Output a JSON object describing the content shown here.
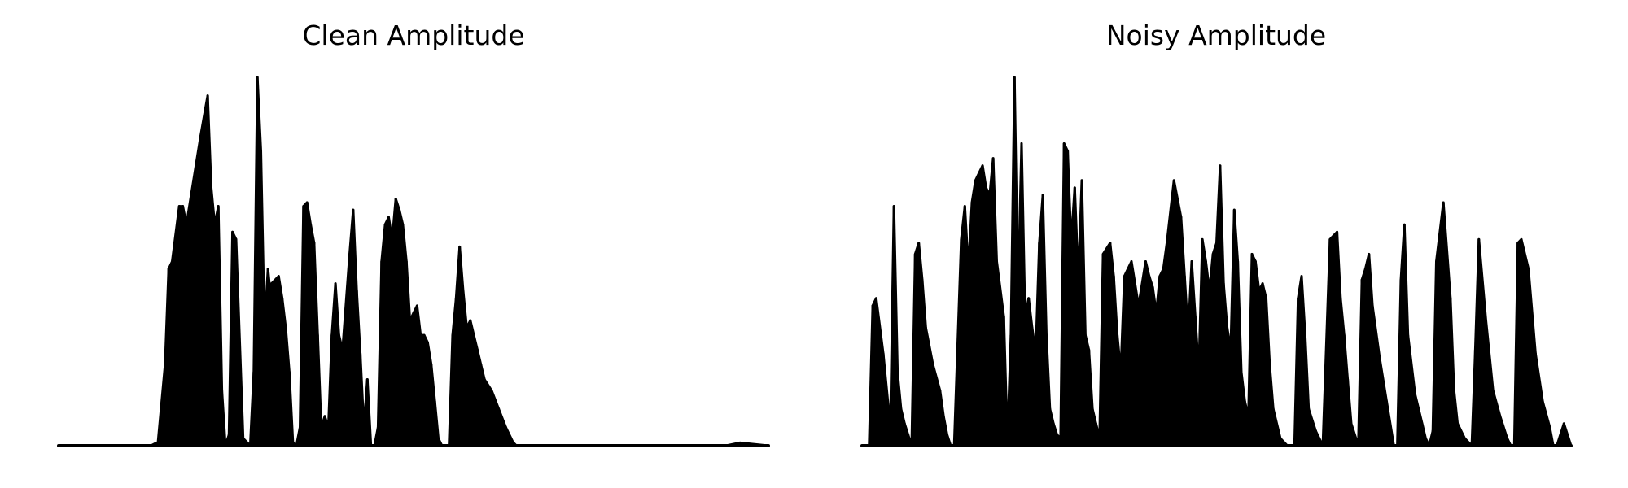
{
  "chart_data": [
    {
      "type": "area",
      "title": "Clean Amplitude",
      "xlabel": "",
      "ylabel": "",
      "ylim": [
        0,
        1
      ],
      "grid": false,
      "axes_visible": false,
      "color": "#000000",
      "x": [
        0,
        0.1,
        0.13,
        0.14,
        0.15,
        0.155,
        0.16,
        0.17,
        0.175,
        0.18,
        0.19,
        0.2,
        0.21,
        0.215,
        0.22,
        0.225,
        0.23,
        0.235,
        0.24,
        0.245,
        0.25,
        0.26,
        0.27,
        0.275,
        0.28,
        0.285,
        0.29,
        0.295,
        0.3,
        0.3,
        0.31,
        0.315,
        0.32,
        0.325,
        0.33,
        0.335,
        0.34,
        0.345,
        0.35,
        0.355,
        0.36,
        0.365,
        0.37,
        0.375,
        0.38,
        0.385,
        0.39,
        0.395,
        0.4,
        0.41,
        0.415,
        0.42,
        0.425,
        0.43,
        0.435,
        0.44,
        0.445,
        0.45,
        0.455,
        0.46,
        0.465,
        0.47,
        0.475,
        0.48,
        0.485,
        0.49,
        0.495,
        0.5,
        0.505,
        0.51,
        0.515,
        0.52,
        0.525,
        0.53,
        0.535,
        0.54,
        0.545,
        0.55,
        0.555,
        0.56,
        0.565,
        0.57,
        0.575,
        0.58,
        0.585,
        0.59,
        0.595,
        0.6,
        0.61,
        0.62,
        0.63,
        0.64,
        0.645,
        0.65,
        0.655,
        0.66,
        0.665,
        0.67,
        0.675,
        0.68,
        0.685,
        0.69,
        0.695,
        0.7,
        0.705,
        0.71,
        0.72,
        0.73,
        0.74,
        0.75,
        0.8,
        0.85,
        0.9,
        0.94,
        0.96,
        1.0
      ],
      "y": [
        0.0,
        0.0,
        0.0,
        0.01,
        0.22,
        0.48,
        0.5,
        0.65,
        0.65,
        0.6,
        0.72,
        0.84,
        0.95,
        0.7,
        0.6,
        0.65,
        0.15,
        0.0,
        0.03,
        0.58,
        0.56,
        0.02,
        0.0,
        0.2,
        1.0,
        0.8,
        0.32,
        0.48,
        0.38,
        0.44,
        0.46,
        0.4,
        0.32,
        0.2,
        0.01,
        0.0,
        0.05,
        0.65,
        0.66,
        0.6,
        0.55,
        0.3,
        0.05,
        0.08,
        0.05,
        0.3,
        0.44,
        0.3,
        0.26,
        0.52,
        0.64,
        0.42,
        0.25,
        0.05,
        0.18,
        0.0,
        0.0,
        0.05,
        0.5,
        0.6,
        0.62,
        0.56,
        0.67,
        0.64,
        0.6,
        0.5,
        0.34,
        0.36,
        0.38,
        0.3,
        0.3,
        0.28,
        0.22,
        0.12,
        0.02,
        0.0,
        0.0,
        0.0,
        0.3,
        0.4,
        0.54,
        0.42,
        0.32,
        0.34,
        0.3,
        0.26,
        0.22,
        0.18,
        0.15,
        0.1,
        0.05,
        0.01,
        0.0,
        0.0,
        0.0,
        0.0,
        0.0,
        0.0,
        0.0,
        0.0,
        0.0,
        0.0,
        0.0,
        0.0,
        0.0,
        0.0,
        0.0,
        0.0,
        0.0,
        0.0,
        0.0,
        0.0,
        0.0,
        0.0,
        0.008,
        0.0
      ]
    },
    {
      "type": "area",
      "title": "Noisy Amplitude",
      "xlabel": "",
      "ylabel": "",
      "ylim": [
        0,
        1
      ],
      "grid": false,
      "axes_visible": false,
      "color": "#000000",
      "x": [
        0,
        0.01,
        0.015,
        0.02,
        0.03,
        0.04,
        0.045,
        0.05,
        0.055,
        0.06,
        0.065,
        0.07,
        0.075,
        0.08,
        0.085,
        0.09,
        0.1,
        0.11,
        0.115,
        0.12,
        0.125,
        0.13,
        0.14,
        0.145,
        0.15,
        0.155,
        0.16,
        0.17,
        0.175,
        0.18,
        0.185,
        0.19,
        0.2,
        0.205,
        0.21,
        0.215,
        0.22,
        0.225,
        0.23,
        0.235,
        0.24,
        0.245,
        0.25,
        0.255,
        0.26,
        0.265,
        0.27,
        0.275,
        0.28,
        0.285,
        0.29,
        0.295,
        0.3,
        0.305,
        0.31,
        0.315,
        0.32,
        0.325,
        0.33,
        0.335,
        0.34,
        0.35,
        0.355,
        0.36,
        0.365,
        0.37,
        0.38,
        0.39,
        0.4,
        0.405,
        0.41,
        0.415,
        0.42,
        0.425,
        0.43,
        0.44,
        0.45,
        0.455,
        0.46,
        0.465,
        0.47,
        0.475,
        0.48,
        0.485,
        0.49,
        0.495,
        0.5,
        0.505,
        0.51,
        0.515,
        0.52,
        0.525,
        0.53,
        0.535,
        0.54,
        0.545,
        0.55,
        0.555,
        0.56,
        0.565,
        0.57,
        0.575,
        0.58,
        0.59,
        0.6,
        0.61,
        0.615,
        0.62,
        0.625,
        0.63,
        0.64,
        0.65,
        0.66,
        0.67,
        0.675,
        0.68,
        0.685,
        0.69,
        0.7,
        0.705,
        0.71,
        0.715,
        0.72,
        0.73,
        0.74,
        0.75,
        0.755,
        0.76,
        0.765,
        0.77,
        0.78,
        0.79,
        0.795,
        0.8,
        0.805,
        0.81,
        0.82,
        0.83,
        0.835,
        0.84,
        0.85,
        0.86,
        0.865,
        0.87,
        0.88,
        0.89,
        0.9,
        0.91,
        0.915,
        0.92,
        0.925,
        0.93,
        0.94,
        0.95,
        0.96,
        0.97,
        0.975,
        0.98,
        0.99,
        1.0
      ],
      "y": [
        0.0,
        0.0,
        0.38,
        0.4,
        0.25,
        0.05,
        0.65,
        0.2,
        0.1,
        0.06,
        0.03,
        0.0,
        0.52,
        0.55,
        0.45,
        0.32,
        0.22,
        0.15,
        0.08,
        0.03,
        0.0,
        0.0,
        0.56,
        0.65,
        0.48,
        0.66,
        0.72,
        0.76,
        0.7,
        0.68,
        0.78,
        0.5,
        0.35,
        0.01,
        0.3,
        1.0,
        0.4,
        0.82,
        0.35,
        0.4,
        0.32,
        0.25,
        0.55,
        0.68,
        0.3,
        0.1,
        0.06,
        0.03,
        0.02,
        0.82,
        0.8,
        0.55,
        0.7,
        0.45,
        0.72,
        0.3,
        0.26,
        0.1,
        0.06,
        0.02,
        0.52,
        0.55,
        0.46,
        0.3,
        0.2,
        0.46,
        0.5,
        0.38,
        0.5,
        0.46,
        0.43,
        0.36,
        0.46,
        0.48,
        0.55,
        0.72,
        0.62,
        0.46,
        0.3,
        0.5,
        0.35,
        0.2,
        0.56,
        0.5,
        0.42,
        0.52,
        0.55,
        0.76,
        0.44,
        0.32,
        0.26,
        0.64,
        0.5,
        0.2,
        0.12,
        0.08,
        0.52,
        0.5,
        0.42,
        0.44,
        0.4,
        0.22,
        0.1,
        0.02,
        0.0,
        0.0,
        0.4,
        0.46,
        0.3,
        0.1,
        0.04,
        0.0,
        0.56,
        0.58,
        0.4,
        0.3,
        0.18,
        0.06,
        0.0,
        0.45,
        0.48,
        0.52,
        0.38,
        0.24,
        0.12,
        0.0,
        0.0,
        0.45,
        0.6,
        0.3,
        0.14,
        0.06,
        0.02,
        0.0,
        0.04,
        0.5,
        0.66,
        0.4,
        0.15,
        0.06,
        0.02,
        0.0,
        0.26,
        0.56,
        0.34,
        0.15,
        0.08,
        0.02,
        0.0,
        0.0,
        0.55,
        0.56,
        0.48,
        0.25,
        0.12,
        0.05,
        0.0,
        0.0,
        0.06,
        0.0
      ]
    }
  ]
}
